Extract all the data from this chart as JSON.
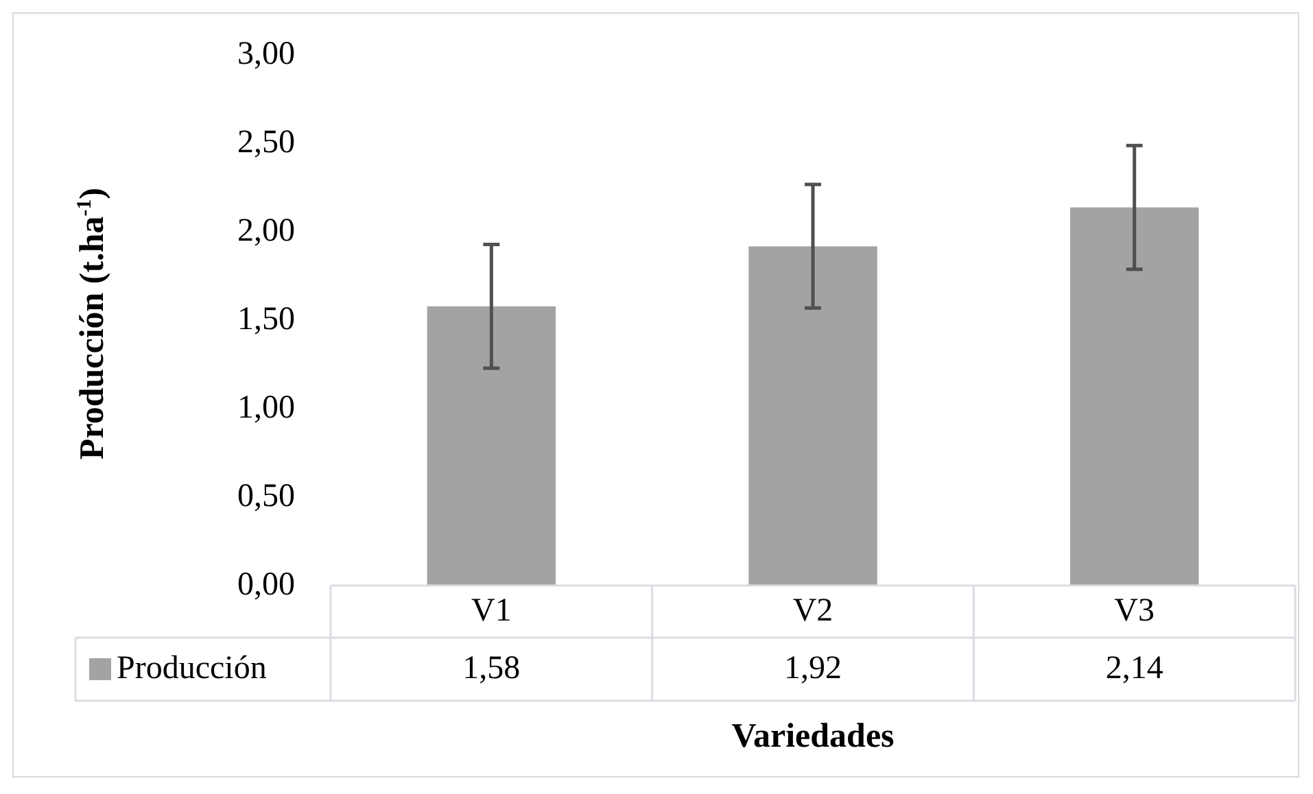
{
  "chart_data": {
    "type": "bar",
    "ylabel": "Producción (t.ha$^{-1}$)",
    "xlabel": "Variedades",
    "categories": [
      "V1",
      "V2",
      "V3"
    ],
    "series": [
      {
        "name": "Producción",
        "color": "#a3a3a3",
        "values": [
          1.58,
          1.92,
          2.14
        ],
        "errors": [
          0.35,
          0.35,
          0.35
        ],
        "value_labels": [
          "1,58",
          "1,92",
          "2,14"
        ]
      }
    ],
    "ylim": [
      0,
      3
    ],
    "yticks": [
      {
        "value": 0,
        "label": "0,00"
      },
      {
        "value": 0.5,
        "label": "0,50"
      },
      {
        "value": 1,
        "label": "1,00"
      },
      {
        "value": 1.5,
        "label": "1,50"
      },
      {
        "value": 2,
        "label": "2,00"
      },
      {
        "value": 2.5,
        "label": "2,50"
      },
      {
        "value": 3,
        "label": "3,00"
      }
    ],
    "grid": false,
    "legend": "bottom"
  }
}
